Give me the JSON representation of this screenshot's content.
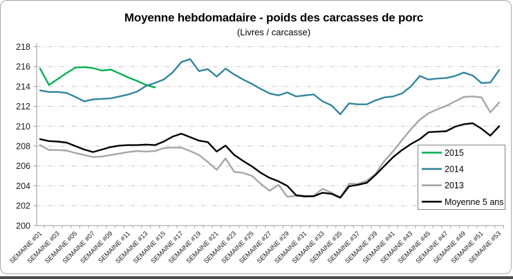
{
  "chart_data": {
    "type": "line",
    "title": "Moyenne hebdomadaire - poids des carcasses de porc",
    "subtitle": "(Livres / carcasse)",
    "x_weeks": 53,
    "x_tick_labels": [
      "SEMAINE #01",
      "SEMAINE #03",
      "SEMAINE #05",
      "SEMAINE #07",
      "SEMAINE #09",
      "SEMAINE #11",
      "SEMAINE #13",
      "SEMAINE #15",
      "SEMAINE #17",
      "SEMAINE #19",
      "SEMAINE #21",
      "SEMAINE #23",
      "SEMAINE #25",
      "SEMAINE #27",
      "SEMAINE #29",
      "SEMAINE #31",
      "SEMAINE #33",
      "SEMAINE #35",
      "SEMAINE #37",
      "SEMAINE #39",
      "SEMAINE #41",
      "SEMAINE #43",
      "SEMAINE #45",
      "SEMAINE #47",
      "SEMAINE #49",
      "SEMAINE #51",
      "SEMAINE #53"
    ],
    "y_tick_labels": [
      "200",
      "202",
      "204",
      "206",
      "208",
      "210",
      "212",
      "214",
      "216",
      "218"
    ],
    "ylim": [
      200,
      218
    ],
    "y_step": 2,
    "grid": true,
    "legend_position": "inside-right",
    "style": {
      "grid_color": "#C3C3C3",
      "axis_color": "#A6A6A6",
      "text_color": "#1a1a1a",
      "background": "#FFFFFF",
      "frame_border_color": "#A6A6A6",
      "legend_border_color": "#808080"
    },
    "series": [
      {
        "name": "2015",
        "color": "#00B050",
        "start_week": 1,
        "values": [
          215.8,
          214.15,
          214.75,
          215.35,
          215.9,
          215.95,
          215.85,
          215.6,
          215.7,
          215.3,
          214.9,
          214.55,
          214.15,
          213.9
        ]
      },
      {
        "name": "2014",
        "color": "#31859C",
        "start_week": 1,
        "values": [
          213.6,
          213.45,
          213.45,
          213.35,
          212.95,
          212.5,
          212.7,
          212.75,
          212.8,
          213.0,
          213.2,
          213.5,
          214.05,
          214.35,
          214.7,
          215.4,
          216.45,
          216.75,
          215.55,
          215.75,
          215.0,
          215.8,
          215.2,
          214.7,
          214.25,
          213.75,
          213.3,
          213.1,
          213.4,
          213.0,
          213.1,
          213.2,
          212.5,
          212.1,
          211.2,
          212.3,
          212.2,
          212.2,
          212.6,
          212.9,
          213.0,
          213.3,
          214.0,
          215.05,
          214.7,
          214.8,
          214.85,
          215.05,
          215.4,
          215.1,
          214.35,
          214.4,
          215.65
        ]
      },
      {
        "name": "2013",
        "color": "#A5A5A5",
        "start_week": 1,
        "values": [
          208.1,
          207.6,
          207.6,
          207.55,
          207.3,
          207.1,
          206.9,
          206.95,
          207.1,
          207.25,
          207.4,
          207.5,
          207.45,
          207.5,
          207.8,
          207.85,
          207.85,
          207.5,
          207.1,
          206.4,
          205.6,
          206.75,
          205.4,
          205.3,
          205.0,
          204.2,
          203.5,
          204.1,
          202.9,
          203.0,
          202.9,
          203.0,
          203.7,
          203.3,
          202.85,
          204.2,
          204.2,
          204.5,
          205.2,
          206.5,
          207.5,
          208.6,
          209.7,
          210.65,
          211.3,
          211.7,
          212.05,
          212.5,
          212.95,
          213.0,
          212.9,
          211.4,
          212.4
        ]
      },
      {
        "name": "Moyenne 5 ans",
        "color": "#000000",
        "start_week": 1,
        "values": [
          208.7,
          208.5,
          208.45,
          208.35,
          208.0,
          207.65,
          207.4,
          207.65,
          207.9,
          208.05,
          208.1,
          208.1,
          208.15,
          208.1,
          208.45,
          208.95,
          209.25,
          208.9,
          208.55,
          208.4,
          207.45,
          208.05,
          207.1,
          206.5,
          205.95,
          205.3,
          204.8,
          204.45,
          204.0,
          203.05,
          202.95,
          202.95,
          203.3,
          203.2,
          202.8,
          203.95,
          204.1,
          204.3,
          205.1,
          206.0,
          206.9,
          207.6,
          208.2,
          208.7,
          209.4,
          209.45,
          209.5,
          209.95,
          210.2,
          210.3,
          209.75,
          209.05,
          210.0
        ]
      }
    ]
  }
}
